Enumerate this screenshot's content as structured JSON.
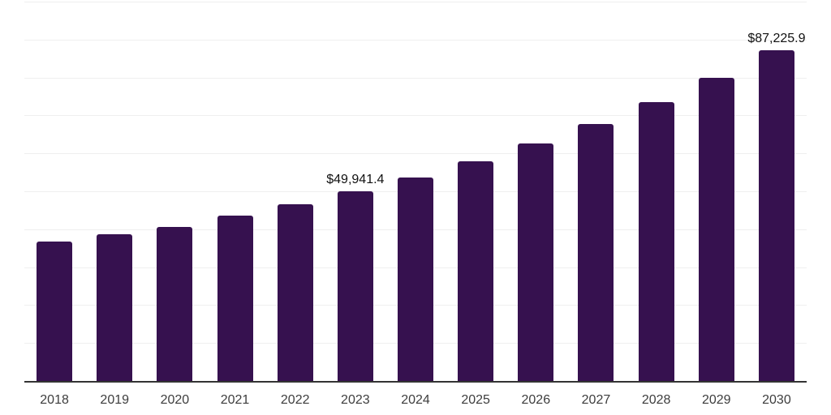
{
  "chart_data": {
    "type": "bar",
    "title": "",
    "xlabel": "",
    "ylabel": "",
    "categories": [
      "2018",
      "2019",
      "2020",
      "2021",
      "2022",
      "2023",
      "2024",
      "2025",
      "2026",
      "2027",
      "2028",
      "2029",
      "2030"
    ],
    "values": [
      36800,
      38700,
      40600,
      43600,
      46500,
      49941.4,
      53700,
      57900,
      62600,
      67700,
      73500,
      80000,
      87225.9
    ],
    "value_labels": [
      null,
      null,
      null,
      null,
      null,
      "$49,941.4",
      null,
      null,
      null,
      null,
      null,
      null,
      "$87,225.9"
    ],
    "ylim": [
      0,
      100000
    ],
    "gridline_interval": 10000,
    "grid": true,
    "legend": "none",
    "currency_prefix": "$"
  },
  "colors": {
    "bar": "#36114F",
    "gridline": "#efefef",
    "axis_line": "#333333",
    "tick_label": "#3d3d3d",
    "data_label": "#111111",
    "background": "#ffffff"
  }
}
